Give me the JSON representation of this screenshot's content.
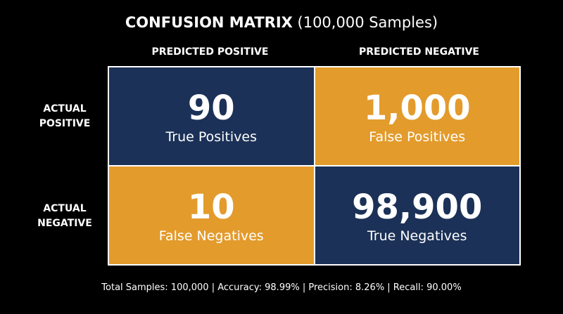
{
  "title": {
    "main": "CONFUSION MATRIX",
    "sub": "(100,000 Samples)"
  },
  "columns": [
    "PREDICTED POSITIVE",
    "PREDICTED NEGATIVE"
  ],
  "rows": [
    "ACTUAL POSITIVE",
    "ACTUAL NEGATIVE"
  ],
  "cells": [
    [
      {
        "value": "90",
        "label": "True Positives"
      },
      {
        "value": "1,000",
        "label": "False Positives"
      }
    ],
    [
      {
        "value": "10",
        "label": "False Negatives"
      },
      {
        "value": "98,900",
        "label": "True Negatives"
      }
    ]
  ],
  "footer": "Total Samples: 100,000 | Accuracy: 98.99% | Precision: 8.26% | Recall: 90.00%"
}
